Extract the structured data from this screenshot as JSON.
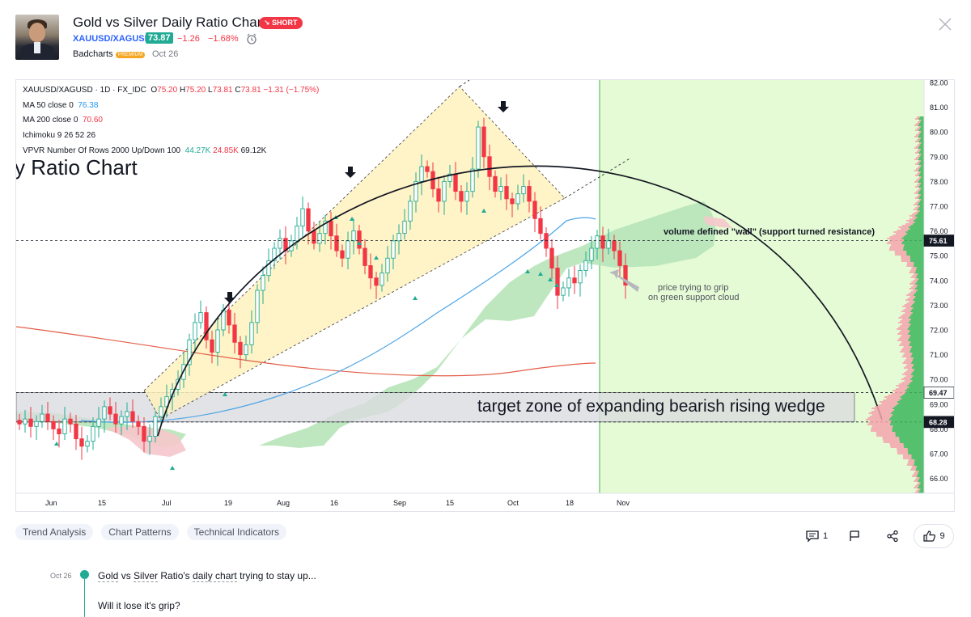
{
  "header": {
    "title": "Gold vs Silver Daily Ratio Chart",
    "badge": "↘ SHORT",
    "symbol": "XAUUSD/XAGUSD",
    "price": "73.87",
    "change": "−1.26",
    "change_pct": "−1.68%",
    "author": "Badcharts",
    "author_badge": "PREMIUM",
    "date": "Oct 26"
  },
  "legend": {
    "symbol_line": "XAUUSD/XAGUSD · 1D · FX_IDC",
    "o_label": "O",
    "o": "75.20",
    "h_label": "H",
    "h": "75.20",
    "l_label": "L",
    "l": "73.81",
    "c_label": "C",
    "c": "73.81",
    "chg": "−1.31 (−1.75%)",
    "ma50_label": "MA 50 close 0",
    "ma50": "76.38",
    "ma200_label": "MA 200 close 0",
    "ma200": "70.60",
    "ichimoku": "Ichimoku 9 26 52 26",
    "vpvr_label": "VPVR Number Of Rows 2000 Up/Down 100",
    "vpvr_up": "44.27K",
    "vpvr_down": "24.85K",
    "vpvr_total": "69.12K"
  },
  "chart_data": {
    "type": "candlestick",
    "symbol": "XAUUSD/XAGUSD",
    "y_axis_ticks": [
      "82.00",
      "81.00",
      "80.00",
      "79.00",
      "78.00",
      "77.00",
      "76.00",
      "75.00",
      "74.00",
      "73.00",
      "72.00",
      "71.00",
      "70.00",
      "69.00",
      "68.00",
      "67.00",
      "66.00"
    ],
    "ylim": [
      65.5,
      82.1
    ],
    "x_axis_ticks": [
      "Jun",
      "15",
      "Jul",
      "19",
      "Aug",
      "16",
      "Sep",
      "15",
      "Oct",
      "18",
      "Nov"
    ],
    "price_labels": [
      {
        "value": 75.61,
        "text": "75.61",
        "style": "dark"
      },
      {
        "value": 69.47,
        "text": "69.47",
        "style": "light"
      },
      {
        "value": 68.28,
        "text": "68.28",
        "style": "dark"
      }
    ],
    "annotations": {
      "overlay_title": "y Ratio Chart",
      "target_zone": "target zone of expanding bearish rising wedge",
      "volume_wall": "volume defined \"wall\" (support turned resistance)",
      "cloud_note_1": "price trying to grip",
      "cloud_note_2": "on green support cloud"
    },
    "target_zone_range": [
      68.28,
      69.47
    ],
    "wall_level": 75.61,
    "candles_sample": [
      {
        "t": "Jun",
        "o": 68.4,
        "h": 68.8,
        "l": 68.0,
        "c": 68.2
      },
      {
        "t": "Jul",
        "o": 68.4,
        "h": 68.9,
        "l": 66.5,
        "c": 67.8
      },
      {
        "t": "19",
        "o": 72.0,
        "h": 72.9,
        "l": 71.6,
        "c": 72.6
      },
      {
        "t": "Aug",
        "o": 71.5,
        "h": 72.2,
        "l": 70.8,
        "c": 71.0
      },
      {
        "t": "16",
        "o": 75.5,
        "h": 77.0,
        "l": 75.0,
        "c": 76.5
      },
      {
        "t": "Sep",
        "o": 74.5,
        "h": 75.2,
        "l": 73.5,
        "c": 73.9
      },
      {
        "t": "15",
        "o": 78.0,
        "h": 79.0,
        "l": 77.4,
        "c": 78.7
      },
      {
        "t": "Oct",
        "o": 80.2,
        "h": 80.4,
        "l": 78.0,
        "c": 78.4
      },
      {
        "t": "18",
        "o": 75.5,
        "h": 75.7,
        "l": 73.2,
        "c": 73.4
      },
      {
        "t": "Nov",
        "o": 75.2,
        "h": 75.4,
        "l": 73.8,
        "c": 73.81
      }
    ],
    "colors": {
      "up": "#22ab94",
      "down": "#f23645",
      "wedge_fill": "#fff2bf",
      "cloud_green": "#b7e4b9",
      "cloud_red": "#f6c6cb",
      "projection_bg": "#e5fbd5",
      "zone_fill": "#dcdde0",
      "ma50": "#4da6e8",
      "ma200": "#e35d48"
    }
  },
  "tags": [
    "Trend Analysis",
    "Chart Patterns",
    "Technical Indicators"
  ],
  "actions": {
    "comments": "1",
    "likes": "9"
  },
  "update": {
    "date": "Oct 26",
    "text_1": "Gold",
    "text_2": " vs ",
    "text_3": "Silver",
    "text_4": " Ratio's ",
    "text_5": "daily chart",
    "text_6": " trying to stay up...",
    "question": "Will it lose it's grip?"
  },
  "icons": [
    "alarm-clock-icon",
    "close-icon",
    "comment-icon",
    "flag-icon",
    "share-icon",
    "thumbs-up-icon",
    "arrow-down-icon"
  ]
}
